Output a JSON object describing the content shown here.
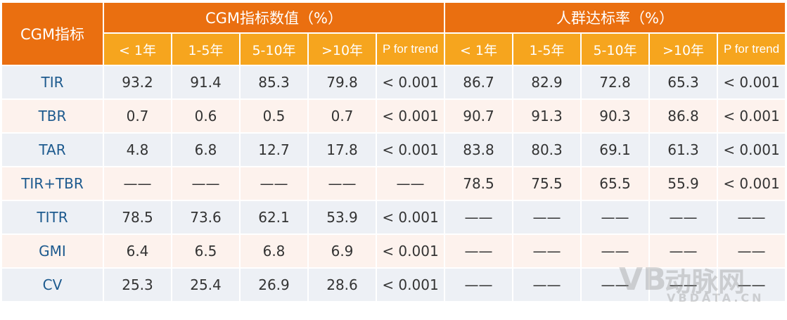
{
  "header": {
    "stub": "CGM指标",
    "groups": [
      "CGM指标数值（%）",
      "人群达标率（%）"
    ],
    "subheaders": [
      "< 1年",
      "1-5年",
      "5-10年",
      ">10年",
      "P for trend",
      "< 1年",
      "1-5年",
      "5-10年",
      ">10年",
      "P for trend"
    ]
  },
  "table": {
    "rows": [
      [
        "TIR",
        "93.2",
        "91.4",
        "85.3",
        "79.8",
        "< 0.001",
        "86.7",
        "82.9",
        "72.8",
        "65.3",
        "< 0.001"
      ],
      [
        "TBR",
        "0.7",
        "0.6",
        "0.5",
        "0.7",
        "< 0.001",
        "90.7",
        "91.3",
        "90.3",
        "86.8",
        "< 0.001"
      ],
      [
        "TAR",
        "4.8",
        "6.8",
        "12.7",
        "17.8",
        "< 0.001",
        "83.8",
        "80.3",
        "69.1",
        "61.3",
        "< 0.001"
      ],
      [
        "TIR+TBR",
        "——",
        "——",
        "——",
        "——",
        "——",
        "78.5",
        "75.5",
        "65.5",
        "55.9",
        "< 0.001"
      ],
      [
        "TITR",
        "78.5",
        "73.6",
        "62.1",
        "53.9",
        "< 0.001",
        "——",
        "——",
        "——",
        "——",
        "——"
      ],
      [
        "GMI",
        "6.4",
        "6.5",
        "6.8",
        "6.9",
        "< 0.001",
        "——",
        "——",
        "——",
        "——",
        "——"
      ],
      [
        "CV",
        "25.3",
        "25.4",
        "26.9",
        "28.6",
        "< 0.001",
        "——",
        "——",
        "——",
        "——",
        "——"
      ]
    ]
  },
  "watermark": {
    "logo": "VB",
    "name": "动脉网",
    "site": "VBDATA.CN"
  }
}
